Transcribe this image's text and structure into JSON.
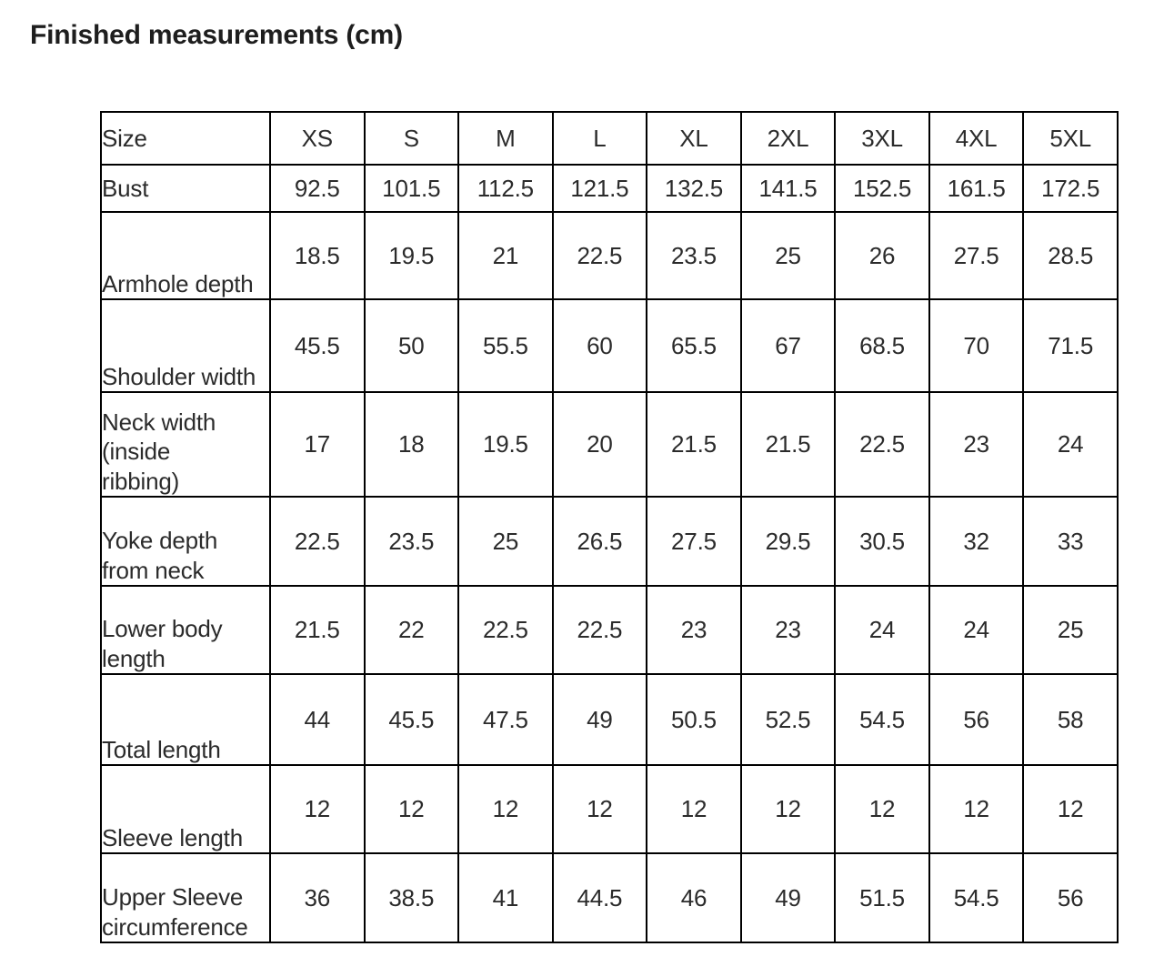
{
  "page": {
    "title": "Finished measurements (cm)"
  },
  "measurements_table": {
    "columns": [
      "Size",
      "XS",
      "S",
      "M",
      "L",
      "XL",
      "2XL",
      "3XL",
      "4XL",
      "5XL"
    ],
    "rows": [
      {
        "label_lines": [
          "Bust"
        ],
        "values": [
          "92.5",
          "101.5",
          "112.5",
          "121.5",
          "132.5",
          "141.5",
          "152.5",
          "161.5",
          "172.5"
        ]
      },
      {
        "label_lines": [
          "Armhole depth"
        ],
        "values": [
          "18.5",
          "19.5",
          "21",
          "22.5",
          "23.5",
          "25",
          "26",
          "27.5",
          "28.5"
        ]
      },
      {
        "label_lines": [
          "Shoulder width"
        ],
        "values": [
          "45.5",
          "50",
          "55.5",
          "60",
          "65.5",
          "67",
          "68.5",
          "70",
          "71.5"
        ]
      },
      {
        "label_lines": [
          "Neck width",
          "(inside",
          "ribbing)"
        ],
        "values": [
          "17",
          "18",
          "19.5",
          "20",
          "21.5",
          "21.5",
          "22.5",
          "23",
          "24"
        ]
      },
      {
        "label_lines": [
          "Yoke depth",
          "from neck"
        ],
        "values": [
          "22.5",
          "23.5",
          "25",
          "26.5",
          "27.5",
          "29.5",
          "30.5",
          "32",
          "33"
        ]
      },
      {
        "label_lines": [
          "Lower body",
          "length"
        ],
        "values": [
          "21.5",
          "22",
          "22.5",
          "22.5",
          "23",
          "23",
          "24",
          "24",
          "25"
        ]
      },
      {
        "label_lines": [
          "Total length"
        ],
        "values": [
          "44",
          "45.5",
          "47.5",
          "49",
          "50.5",
          "52.5",
          "54.5",
          "56",
          "58"
        ]
      },
      {
        "label_lines": [
          "Sleeve length"
        ],
        "values": [
          "12",
          "12",
          "12",
          "12",
          "12",
          "12",
          "12",
          "12",
          "12"
        ]
      },
      {
        "label_lines": [
          "Upper Sleeve",
          "circumference"
        ],
        "values": [
          "36",
          "38.5",
          "41",
          "44.5",
          "46",
          "49",
          "51.5",
          "54.5",
          "56"
        ]
      }
    ]
  },
  "colors": {
    "border": "#000000",
    "text": "#2b2b2b",
    "title": "#1e1e1e",
    "background": "#ffffff"
  }
}
